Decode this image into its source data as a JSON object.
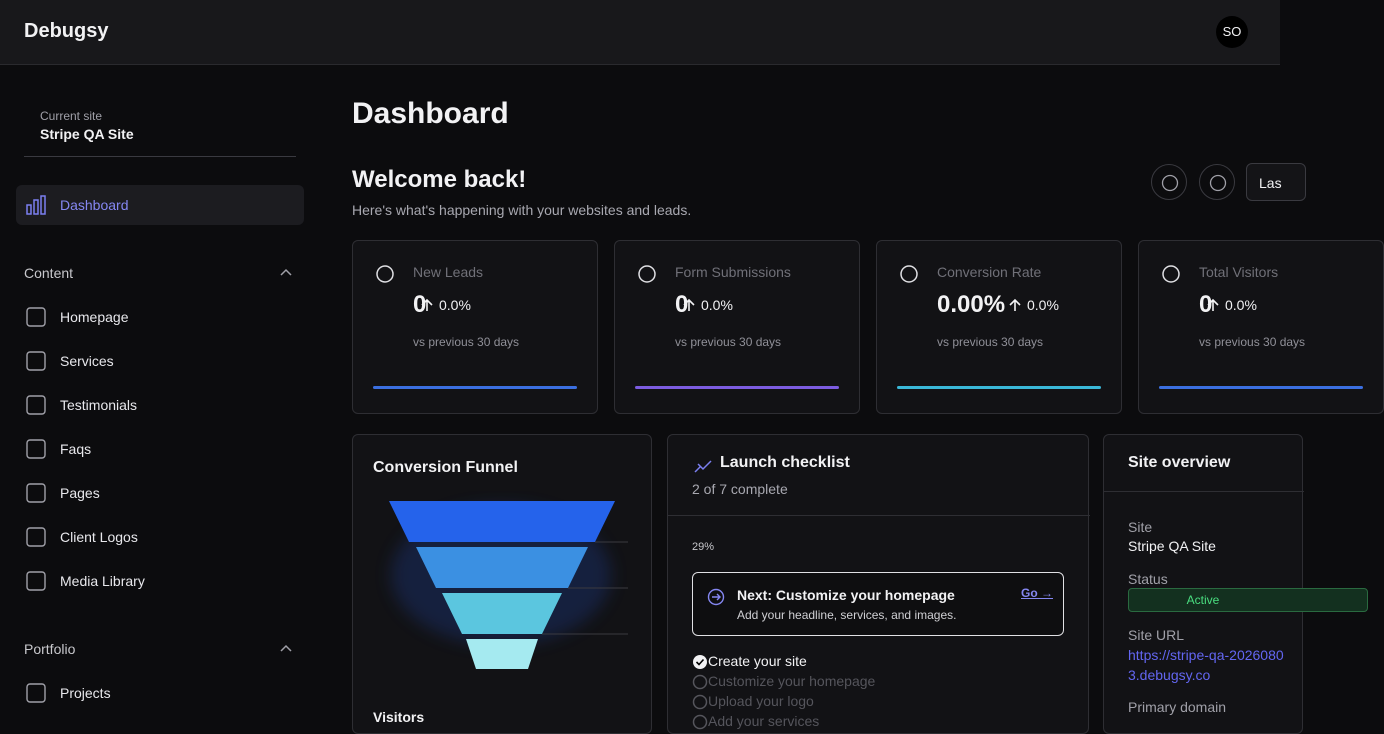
{
  "header": {
    "brand": "Debugsy",
    "avatar": "SO"
  },
  "sidebar": {
    "site_label": "Current site",
    "site_name": "Stripe QA Site",
    "active": "Dashboard",
    "sections": [
      {
        "title": "Content",
        "items": [
          "Homepage",
          "Services",
          "Testimonials",
          "Faqs",
          "Pages",
          "Client Logos",
          "Media Library"
        ]
      },
      {
        "title": "Portfolio",
        "items": [
          "Projects"
        ]
      }
    ]
  },
  "main": {
    "title": "Dashboard",
    "welcome": "Welcome back!",
    "subtitle": "Here's what's happening with your websites and leads.",
    "range_button": "Las",
    "stats": [
      {
        "label": "New Leads",
        "value": "0",
        "change": "0.0%",
        "note": "vs previous 30 days",
        "color": "#3b6fe0"
      },
      {
        "label": "Form Submissions",
        "value": "0",
        "change": "0.0%",
        "note": "vs previous 30 days",
        "color": "#7c5ce0"
      },
      {
        "label": "Conversion Rate",
        "value": "0.00%",
        "change": "0.0%",
        "note": "vs previous 30 days",
        "color": "#3ab8d8"
      },
      {
        "label": "Total Visitors",
        "value": "0",
        "change": "0.0%",
        "note": "vs previous 30 days",
        "color": "#3b6fe0"
      }
    ],
    "funnel": {
      "title": "Conversion Funnel",
      "footer": "Visitors"
    },
    "checklist": {
      "title": "Launch checklist",
      "progress": "2 of 7 complete",
      "percent": "29%",
      "next_title": "Next: Customize your homepage",
      "next_desc": "Add your headline, services, and images.",
      "next_link": "Go →",
      "items": [
        {
          "label": "Create your site",
          "done": true
        },
        {
          "label": "Customize your homepage",
          "done": false
        },
        {
          "label": "Upload your logo",
          "done": false
        },
        {
          "label": "Add your services",
          "done": false
        }
      ]
    },
    "overview": {
      "title": "Site overview",
      "fields": [
        {
          "label": "Site",
          "value": "Stripe QA Site"
        },
        {
          "label": "Status",
          "value": "Active"
        },
        {
          "label": "Site URL",
          "value": "https://stripe-qa-20260803.debugsy.co"
        },
        {
          "label": "Primary domain"
        }
      ]
    }
  }
}
